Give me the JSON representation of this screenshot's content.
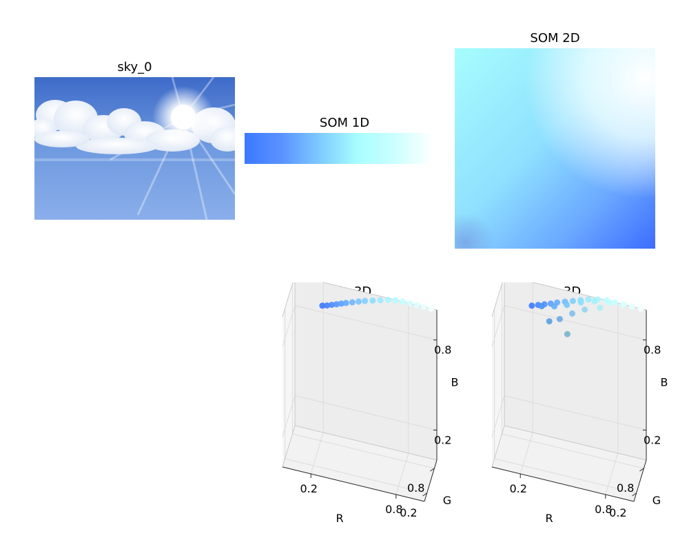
{
  "panels": {
    "photo": {
      "title": "sky_0"
    },
    "som1d": {
      "title": "SOM 1D",
      "gradient": [
        "#3c78ff",
        "#5a93ff",
        "#7ecbff",
        "#a8fdff",
        "#cbffff",
        "#ffffff"
      ]
    },
    "som2d": {
      "title": "SOM 2D"
    }
  },
  "chart_data": [
    {
      "type": "scatter",
      "title": "1D in 3D",
      "xlabel": "R",
      "ylabel": "G",
      "zlabel": "B",
      "xticks": [
        0.2,
        0.8
      ],
      "yticks": [
        0.2,
        0.8
      ],
      "zticks": [
        0.2,
        0.8
      ],
      "xlim": [
        0,
        1
      ],
      "ylim": [
        0,
        1
      ],
      "zlim": [
        0,
        1
      ],
      "points": [
        [
          0.24,
          0.47,
          1.0
        ],
        [
          0.27,
          0.5,
          1.0
        ],
        [
          0.3,
          0.54,
          1.0
        ],
        [
          0.33,
          0.58,
          1.0
        ],
        [
          0.36,
          0.62,
          1.0
        ],
        [
          0.39,
          0.66,
          1.0
        ],
        [
          0.43,
          0.71,
          1.0
        ],
        [
          0.47,
          0.76,
          1.0
        ],
        [
          0.51,
          0.81,
          1.0
        ],
        [
          0.56,
          0.86,
          1.0
        ],
        [
          0.61,
          0.91,
          1.0
        ],
        [
          0.66,
          0.96,
          1.0
        ],
        [
          0.71,
          0.99,
          1.0
        ],
        [
          0.76,
          1.0,
          1.0
        ],
        [
          0.81,
          1.0,
          1.0
        ],
        [
          0.86,
          1.0,
          1.0
        ],
        [
          0.91,
          1.0,
          1.0
        ],
        [
          0.96,
          1.0,
          1.0
        ]
      ]
    },
    {
      "type": "scatter",
      "title": "2D in 3D",
      "xlabel": "R",
      "ylabel": "G",
      "zlabel": "B",
      "xticks": [
        0.2,
        0.8
      ],
      "yticks": [
        0.2,
        0.8
      ],
      "zticks": [
        0.2,
        0.8
      ],
      "xlim": [
        0,
        1
      ],
      "ylim": [
        0,
        1
      ],
      "zlim": [
        0,
        1
      ],
      "points": [
        [
          0.24,
          0.47,
          1.0
        ],
        [
          0.28,
          0.52,
          1.0
        ],
        [
          0.32,
          0.57,
          1.0
        ],
        [
          0.36,
          0.62,
          1.0
        ],
        [
          0.4,
          0.68,
          1.0
        ],
        [
          0.45,
          0.74,
          1.0
        ],
        [
          0.5,
          0.8,
          1.0
        ],
        [
          0.55,
          0.86,
          1.0
        ],
        [
          0.6,
          0.92,
          1.0
        ],
        [
          0.66,
          0.97,
          1.0
        ],
        [
          0.72,
          1.0,
          1.0
        ],
        [
          0.78,
          1.0,
          1.0
        ],
        [
          0.84,
          1.0,
          1.0
        ],
        [
          0.9,
          1.0,
          1.0
        ],
        [
          0.96,
          1.0,
          1.0
        ],
        [
          0.3,
          0.58,
          0.98
        ],
        [
          0.38,
          0.68,
          0.97
        ],
        [
          0.46,
          0.78,
          0.97
        ],
        [
          0.55,
          0.88,
          0.98
        ],
        [
          0.64,
          0.95,
          0.99
        ],
        [
          0.74,
          1.0,
          0.99
        ],
        [
          0.84,
          1.0,
          1.0
        ],
        [
          0.42,
          0.66,
          0.9
        ],
        [
          0.5,
          0.75,
          0.93
        ],
        [
          0.35,
          0.62,
          0.88
        ],
        [
          0.58,
          0.84,
          0.95
        ],
        [
          0.68,
          0.93,
          0.96
        ],
        [
          0.47,
          0.7,
          0.8
        ]
      ]
    }
  ]
}
